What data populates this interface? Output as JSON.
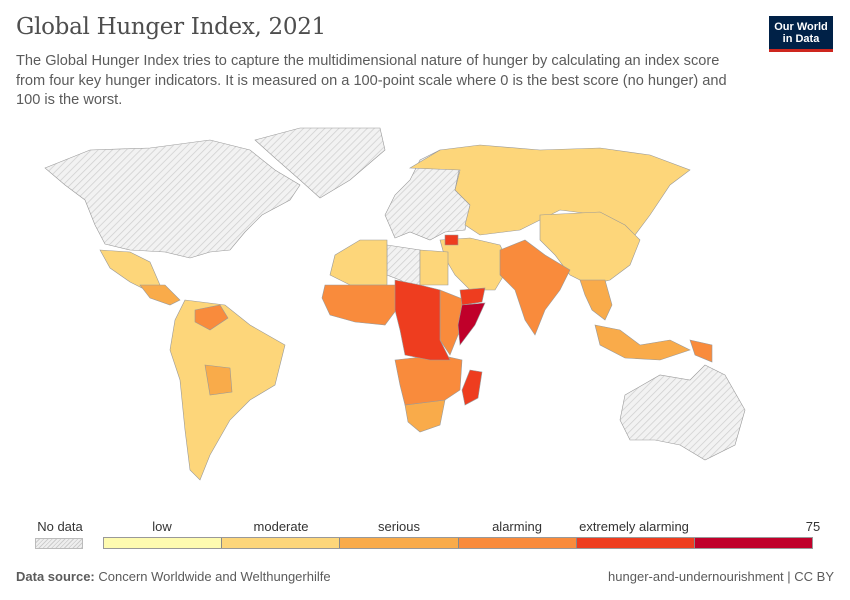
{
  "header": {
    "title": "Global Hunger Index, 2021",
    "subtitle": "The Global Hunger Index tries to capture the multidimensional nature of hunger by calculating an index score from four key hunger indicators. It is measured on a 100-point scale where 0 is the best score (no hunger) and 100 is the worst.",
    "logo_line1": "Our World",
    "logo_line2": "in Data"
  },
  "legend": {
    "no_data_label": "No data",
    "categories": [
      {
        "label": "low",
        "color": "#fefbb0"
      },
      {
        "label": "moderate",
        "color": "#fdd67a"
      },
      {
        "label": "serious",
        "color": "#f9ab4a"
      },
      {
        "label": "alarming",
        "color": "#f98b3c"
      },
      {
        "label": "extremely alarming",
        "color": "#ee3d1f"
      },
      {
        "label": "",
        "color": "#c0002a"
      }
    ],
    "max_label": "75",
    "no_data_color": "#dddddd"
  },
  "footer": {
    "source_prefix": "Data source:",
    "source": "Concern Worldwide and Welthungerhilfe",
    "license": "hunger-and-undernourishment | CC BY"
  }
}
